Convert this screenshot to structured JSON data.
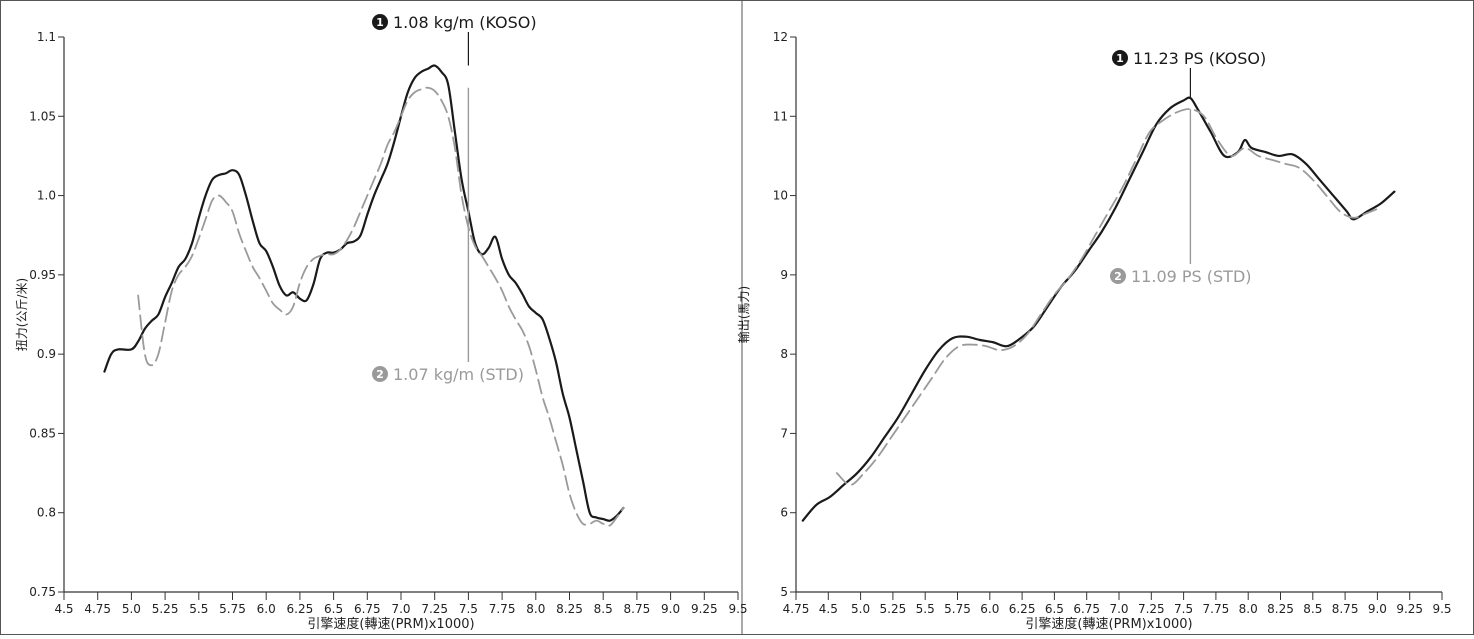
{
  "chart_data": [
    {
      "type": "line",
      "ylabel": "扭力(公斤/米)",
      "xlabel": "引擎速度(轉速(PRM)x1000)",
      "xlim": [
        4.5,
        9.5
      ],
      "ylim": [
        0.75,
        1.1
      ],
      "x_ticks": [
        "4.5",
        "4.75",
        "5.0",
        "5.25",
        "5.5",
        "5.75",
        "6.0",
        "6.25",
        "6.5",
        "6.75",
        "7.0",
        "7.25",
        "7.5",
        "7.75",
        "8.0",
        "8.25",
        "8.5",
        "8.75",
        "9.0",
        "9.25",
        "9.5"
      ],
      "y_ticks": [
        "0.75",
        "0.8",
        "0.85",
        "0.9",
        "0.95",
        "1.0",
        "1.05",
        "1.1"
      ],
      "series": [
        {
          "style": "solid",
          "color": "#1a1a1a",
          "points": [
            [
              4.8,
              0.889
            ],
            [
              4.85,
              0.9
            ],
            [
              4.9,
              0.903
            ],
            [
              5.0,
              0.903
            ],
            [
              5.05,
              0.908
            ],
            [
              5.1,
              0.916
            ],
            [
              5.15,
              0.921
            ],
            [
              5.2,
              0.925
            ],
            [
              5.25,
              0.936
            ],
            [
              5.3,
              0.945
            ],
            [
              5.35,
              0.955
            ],
            [
              5.4,
              0.96
            ],
            [
              5.45,
              0.97
            ],
            [
              5.5,
              0.986
            ],
            [
              5.55,
              1.0
            ],
            [
              5.6,
              1.01
            ],
            [
              5.65,
              1.013
            ],
            [
              5.7,
              1.014
            ],
            [
              5.75,
              1.016
            ],
            [
              5.8,
              1.013
            ],
            [
              5.85,
              1.0
            ],
            [
              5.9,
              0.984
            ],
            [
              5.95,
              0.97
            ],
            [
              6.0,
              0.965
            ],
            [
              6.05,
              0.955
            ],
            [
              6.1,
              0.943
            ],
            [
              6.15,
              0.937
            ],
            [
              6.2,
              0.939
            ],
            [
              6.25,
              0.935
            ],
            [
              6.3,
              0.934
            ],
            [
              6.35,
              0.944
            ],
            [
              6.4,
              0.96
            ],
            [
              6.45,
              0.964
            ],
            [
              6.5,
              0.964
            ],
            [
              6.55,
              0.966
            ],
            [
              6.6,
              0.97
            ],
            [
              6.65,
              0.971
            ],
            [
              6.7,
              0.975
            ],
            [
              6.75,
              0.988
            ],
            [
              6.8,
              1.0
            ],
            [
              6.85,
              1.01
            ],
            [
              6.9,
              1.02
            ],
            [
              6.95,
              1.034
            ],
            [
              7.0,
              1.05
            ],
            [
              7.05,
              1.065
            ],
            [
              7.1,
              1.074
            ],
            [
              7.15,
              1.078
            ],
            [
              7.2,
              1.08
            ],
            [
              7.25,
              1.082
            ],
            [
              7.3,
              1.078
            ],
            [
              7.35,
              1.07
            ],
            [
              7.4,
              1.04
            ],
            [
              7.45,
              1.01
            ],
            [
              7.5,
              0.99
            ],
            [
              7.55,
              0.97
            ],
            [
              7.6,
              0.963
            ],
            [
              7.65,
              0.967
            ],
            [
              7.7,
              0.974
            ],
            [
              7.75,
              0.96
            ],
            [
              7.8,
              0.95
            ],
            [
              7.85,
              0.945
            ],
            [
              7.9,
              0.938
            ],
            [
              7.95,
              0.93
            ],
            [
              8.0,
              0.926
            ],
            [
              8.05,
              0.922
            ],
            [
              8.1,
              0.91
            ],
            [
              8.15,
              0.895
            ],
            [
              8.2,
              0.875
            ],
            [
              8.25,
              0.86
            ],
            [
              8.3,
              0.84
            ],
            [
              8.35,
              0.82
            ],
            [
              8.4,
              0.8
            ],
            [
              8.45,
              0.797
            ],
            [
              8.5,
              0.796
            ],
            [
              8.55,
              0.795
            ],
            [
              8.6,
              0.798
            ],
            [
              8.65,
              0.803
            ]
          ]
        },
        {
          "style": "dashed",
          "color": "#9a9a9a",
          "points": [
            [
              5.05,
              0.937
            ],
            [
              5.1,
              0.9
            ],
            [
              5.15,
              0.893
            ],
            [
              5.2,
              0.9
            ],
            [
              5.25,
              0.92
            ],
            [
              5.3,
              0.94
            ],
            [
              5.35,
              0.95
            ],
            [
              5.4,
              0.955
            ],
            [
              5.45,
              0.962
            ],
            [
              5.5,
              0.973
            ],
            [
              5.55,
              0.985
            ],
            [
              5.6,
              0.997
            ],
            [
              5.65,
              1.0
            ],
            [
              5.7,
              0.996
            ],
            [
              5.75,
              0.99
            ],
            [
              5.8,
              0.976
            ],
            [
              5.85,
              0.965
            ],
            [
              5.9,
              0.955
            ],
            [
              5.95,
              0.948
            ],
            [
              6.0,
              0.94
            ],
            [
              6.05,
              0.932
            ],
            [
              6.1,
              0.928
            ],
            [
              6.15,
              0.925
            ],
            [
              6.2,
              0.93
            ],
            [
              6.25,
              0.945
            ],
            [
              6.3,
              0.955
            ],
            [
              6.35,
              0.96
            ],
            [
              6.4,
              0.962
            ],
            [
              6.45,
              0.963
            ],
            [
              6.5,
              0.963
            ],
            [
              6.55,
              0.966
            ],
            [
              6.6,
              0.972
            ],
            [
              6.65,
              0.98
            ],
            [
              6.7,
              0.99
            ],
            [
              6.75,
              1.0
            ],
            [
              6.8,
              1.01
            ],
            [
              6.85,
              1.02
            ],
            [
              6.9,
              1.032
            ],
            [
              6.95,
              1.04
            ],
            [
              7.0,
              1.05
            ],
            [
              7.05,
              1.06
            ],
            [
              7.1,
              1.065
            ],
            [
              7.15,
              1.067
            ],
            [
              7.2,
              1.068
            ],
            [
              7.25,
              1.066
            ],
            [
              7.3,
              1.06
            ],
            [
              7.35,
              1.05
            ],
            [
              7.4,
              1.03
            ],
            [
              7.45,
              1.0
            ],
            [
              7.5,
              0.98
            ],
            [
              7.55,
              0.968
            ],
            [
              7.6,
              0.962
            ],
            [
              7.65,
              0.955
            ],
            [
              7.7,
              0.948
            ],
            [
              7.75,
              0.94
            ],
            [
              7.8,
              0.93
            ],
            [
              7.85,
              0.922
            ],
            [
              7.9,
              0.915
            ],
            [
              7.95,
              0.905
            ],
            [
              8.0,
              0.89
            ],
            [
              8.05,
              0.873
            ],
            [
              8.1,
              0.86
            ],
            [
              8.15,
              0.845
            ],
            [
              8.2,
              0.83
            ],
            [
              8.25,
              0.812
            ],
            [
              8.3,
              0.8
            ],
            [
              8.35,
              0.793
            ],
            [
              8.4,
              0.793
            ],
            [
              8.45,
              0.795
            ],
            [
              8.5,
              0.793
            ],
            [
              8.55,
              0.792
            ],
            [
              8.6,
              0.797
            ],
            [
              8.65,
              0.803
            ]
          ]
        }
      ],
      "annotations": [
        {
          "badge": "1",
          "text": "1.08 kg/m (KOSO)",
          "x": 7.5,
          "y": 1.082,
          "color": "#1a1a1a"
        },
        {
          "badge": "2",
          "text": "1.07 kg/m (STD)",
          "x": 7.5,
          "y": 1.068,
          "color": "#9a9a9a"
        }
      ]
    },
    {
      "type": "line",
      "ylabel": "輸出(馬力)",
      "xlabel": "引擎速度(轉速(PRM)x1000)",
      "xlim": [
        4.75,
        9.5
      ],
      "ylim": [
        5,
        12
      ],
      "x_ticks": [
        "4.75",
        "4.5",
        "5.0",
        "5.25",
        "5.5",
        "5.75",
        "6.0",
        "6.25",
        "6.5",
        "6.75",
        "7.0",
        "7.25",
        "7.5",
        "7.75",
        "8.0",
        "8.25",
        "8.5",
        "8.75",
        "9.0",
        "9.25",
        "9.5"
      ],
      "y_ticks": [
        "5",
        "6",
        "7",
        "8",
        "9",
        "10",
        "11",
        "12"
      ],
      "series": [
        {
          "style": "solid",
          "color": "#1a1a1a",
          "points": [
            [
              4.8,
              5.9
            ],
            [
              4.9,
              6.1
            ],
            [
              5.0,
              6.2
            ],
            [
              5.1,
              6.35
            ],
            [
              5.2,
              6.5
            ],
            [
              5.3,
              6.7
            ],
            [
              5.4,
              6.95
            ],
            [
              5.5,
              7.2
            ],
            [
              5.6,
              7.5
            ],
            [
              5.7,
              7.8
            ],
            [
              5.8,
              8.05
            ],
            [
              5.9,
              8.2
            ],
            [
              6.0,
              8.22
            ],
            [
              6.1,
              8.18
            ],
            [
              6.2,
              8.15
            ],
            [
              6.3,
              8.1
            ],
            [
              6.4,
              8.2
            ],
            [
              6.5,
              8.35
            ],
            [
              6.6,
              8.6
            ],
            [
              6.7,
              8.85
            ],
            [
              6.8,
              9.05
            ],
            [
              6.9,
              9.3
            ],
            [
              7.0,
              9.55
            ],
            [
              7.1,
              9.85
            ],
            [
              7.2,
              10.2
            ],
            [
              7.3,
              10.55
            ],
            [
              7.4,
              10.9
            ],
            [
              7.5,
              11.1
            ],
            [
              7.6,
              11.2
            ],
            [
              7.65,
              11.23
            ],
            [
              7.7,
              11.1
            ],
            [
              7.8,
              10.8
            ],
            [
              7.9,
              10.5
            ],
            [
              8.0,
              10.55
            ],
            [
              8.05,
              10.7
            ],
            [
              8.1,
              10.6
            ],
            [
              8.2,
              10.55
            ],
            [
              8.3,
              10.5
            ],
            [
              8.4,
              10.52
            ],
            [
              8.5,
              10.4
            ],
            [
              8.6,
              10.2
            ],
            [
              8.7,
              10.0
            ],
            [
              8.8,
              9.8
            ],
            [
              8.85,
              9.7
            ],
            [
              8.95,
              9.8
            ],
            [
              9.05,
              9.9
            ],
            [
              9.15,
              10.05
            ]
          ]
        },
        {
          "style": "dashed",
          "color": "#9a9a9a",
          "points": [
            [
              5.05,
              6.5
            ],
            [
              5.15,
              6.35
            ],
            [
              5.25,
              6.5
            ],
            [
              5.35,
              6.7
            ],
            [
              5.45,
              6.95
            ],
            [
              5.55,
              7.2
            ],
            [
              5.65,
              7.45
            ],
            [
              5.75,
              7.7
            ],
            [
              5.85,
              7.95
            ],
            [
              5.95,
              8.1
            ],
            [
              6.05,
              8.12
            ],
            [
              6.15,
              8.1
            ],
            [
              6.25,
              8.05
            ],
            [
              6.35,
              8.1
            ],
            [
              6.45,
              8.25
            ],
            [
              6.55,
              8.5
            ],
            [
              6.65,
              8.75
            ],
            [
              6.75,
              8.95
            ],
            [
              6.85,
              9.2
            ],
            [
              6.95,
              9.5
            ],
            [
              7.05,
              9.8
            ],
            [
              7.15,
              10.1
            ],
            [
              7.25,
              10.45
            ],
            [
              7.35,
              10.8
            ],
            [
              7.45,
              10.95
            ],
            [
              7.55,
              11.05
            ],
            [
              7.65,
              11.09
            ],
            [
              7.75,
              11.0
            ],
            [
              7.85,
              10.7
            ],
            [
              7.95,
              10.5
            ],
            [
              8.05,
              10.6
            ],
            [
              8.15,
              10.5
            ],
            [
              8.25,
              10.45
            ],
            [
              8.35,
              10.4
            ],
            [
              8.45,
              10.35
            ],
            [
              8.55,
              10.2
            ],
            [
              8.65,
              10.0
            ],
            [
              8.75,
              9.8
            ],
            [
              8.85,
              9.72
            ],
            [
              8.95,
              9.78
            ],
            [
              9.05,
              9.85
            ]
          ]
        }
      ],
      "annotations": [
        {
          "badge": "1",
          "text": "11.23 PS (KOSO)",
          "x": 7.65,
          "y": 11.23,
          "color": "#1a1a1a"
        },
        {
          "badge": "2",
          "text": "11.09 PS (STD)",
          "x": 7.65,
          "y": 11.09,
          "color": "#9a9a9a"
        }
      ]
    }
  ]
}
